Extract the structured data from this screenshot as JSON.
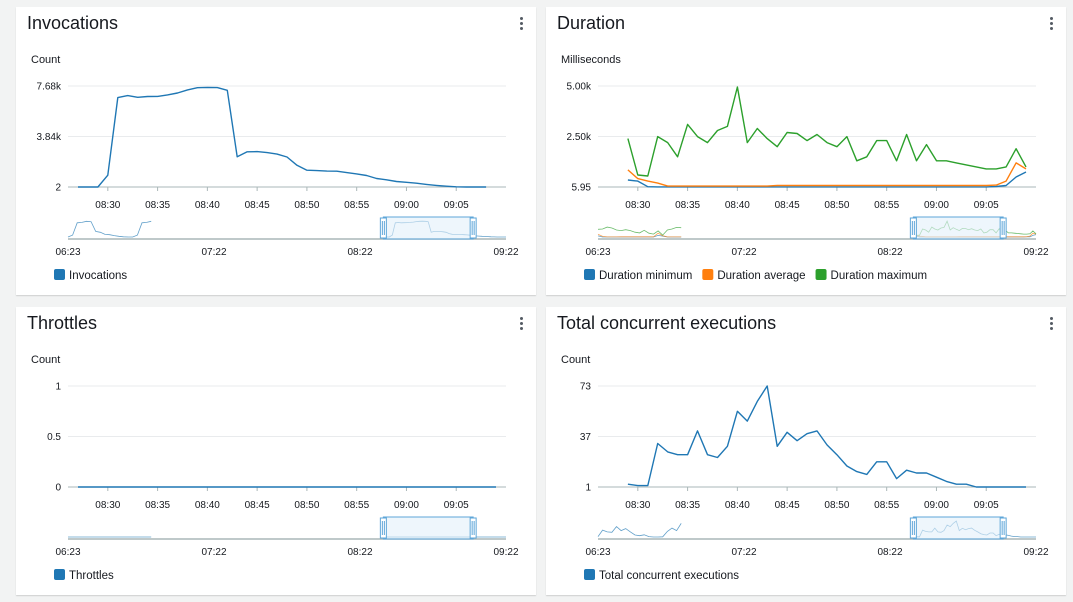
{
  "colors": {
    "blue": "#1f77b4",
    "orange": "#ff7f0e",
    "green": "#2ca02c",
    "grid": "#e9ebed",
    "axis": "#545b64",
    "nav_fill": "#e3f0fa",
    "nav_border": "#5ea6d8"
  },
  "time_axis": {
    "tick_labels": [
      "08:30",
      "08:35",
      "08:40",
      "08:45",
      "08:50",
      "08:55",
      "09:00",
      "09:05"
    ]
  },
  "navigator": {
    "tick_labels": [
      "06:23",
      "07:22",
      "08:22",
      "09:22"
    ]
  },
  "chart_data": [
    {
      "id": "invocations",
      "type": "line",
      "title": "Invocations",
      "ylabel": "Count",
      "ylim": [
        2,
        7680
      ],
      "ytick_labels": [
        "7.68k",
        "3.84k",
        "2"
      ],
      "ytick_values": [
        7680,
        3840,
        2
      ],
      "x": [
        27,
        28,
        29,
        30,
        31,
        32,
        33,
        34,
        35,
        36,
        37,
        38,
        39,
        40,
        41,
        42,
        43,
        44,
        45,
        46,
        47,
        48,
        49,
        50,
        51,
        52,
        53,
        54,
        55,
        56,
        57,
        58,
        59,
        60,
        61,
        62,
        63,
        64,
        65,
        66,
        67,
        68
      ],
      "series": [
        {
          "name": "Invocations",
          "color": "#1f77b4",
          "values": [
            2,
            2,
            2,
            900,
            6800,
            6950,
            6820,
            6880,
            6890,
            7000,
            7150,
            7380,
            7550,
            7570,
            7560,
            7350,
            2300,
            2680,
            2690,
            2620,
            2500,
            2280,
            1650,
            1280,
            1250,
            1210,
            1200,
            1100,
            1000,
            880,
            650,
            550,
            420,
            360,
            290,
            200,
            120,
            60,
            20,
            2,
            2,
            2
          ]
        }
      ],
      "legend": [
        "Invocations"
      ]
    },
    {
      "id": "duration",
      "type": "line",
      "title": "Duration",
      "ylabel": "Milliseconds",
      "ylim": [
        5.95,
        5000
      ],
      "ytick_labels": [
        "5.00k",
        "2.50k",
        "5.95"
      ],
      "ytick_values": [
        5000,
        2500,
        5.95
      ],
      "x": [
        29,
        30,
        31,
        32,
        33,
        34,
        35,
        36,
        37,
        38,
        39,
        40,
        41,
        42,
        43,
        44,
        45,
        46,
        47,
        48,
        49,
        50,
        51,
        52,
        53,
        54,
        55,
        56,
        57,
        58,
        59,
        60,
        61,
        62,
        63,
        64,
        65,
        66,
        67,
        68,
        69
      ],
      "series": [
        {
          "name": "Duration minimum",
          "color": "#1f77b4",
          "values": [
            350,
            300,
            20,
            10,
            10,
            10,
            10,
            10,
            10,
            10,
            10,
            10,
            10,
            10,
            10,
            10,
            10,
            10,
            10,
            10,
            10,
            10,
            10,
            10,
            10,
            10,
            10,
            10,
            10,
            10,
            10,
            10,
            10,
            10,
            10,
            10,
            10,
            30,
            80,
            500,
            750
          ]
        },
        {
          "name": "Duration average",
          "color": "#ff7f0e",
          "values": [
            850,
            420,
            300,
            200,
            50,
            50,
            50,
            50,
            50,
            50,
            50,
            50,
            50,
            50,
            50,
            80,
            80,
            80,
            80,
            80,
            80,
            80,
            80,
            80,
            80,
            80,
            80,
            80,
            80,
            80,
            80,
            80,
            80,
            80,
            80,
            80,
            80,
            100,
            300,
            1200,
            900
          ]
        },
        {
          "name": "Duration maximum",
          "color": "#2ca02c",
          "values": [
            2400,
            600,
            550,
            2500,
            2200,
            1500,
            3100,
            2500,
            2200,
            2800,
            3000,
            4950,
            2200,
            2900,
            2400,
            2000,
            2700,
            2650,
            2300,
            2600,
            2200,
            2000,
            2500,
            1300,
            1500,
            2300,
            2300,
            1300,
            2600,
            1300,
            2100,
            1300,
            1300,
            1200,
            1100,
            1000,
            900,
            900,
            1000,
            1900,
            1000
          ]
        }
      ],
      "legend": [
        "Duration minimum",
        "Duration average",
        "Duration maximum"
      ]
    },
    {
      "id": "throttles",
      "type": "line",
      "title": "Throttles",
      "ylabel": "Count",
      "ylim": [
        0,
        1
      ],
      "ytick_labels": [
        "1",
        "0.5",
        "0"
      ],
      "ytick_values": [
        1,
        0.5,
        0
      ],
      "x": [
        27,
        69
      ],
      "series": [
        {
          "name": "Throttles",
          "color": "#1f77b4",
          "values": [
            0,
            0
          ]
        }
      ],
      "legend": [
        "Throttles"
      ]
    },
    {
      "id": "concurrent",
      "type": "line",
      "title": "Total concurrent executions",
      "ylabel": "Count",
      "ylim": [
        1,
        73
      ],
      "ytick_labels": [
        "73",
        "37",
        "1"
      ],
      "ytick_values": [
        73,
        37,
        1
      ],
      "x": [
        29,
        30,
        31,
        32,
        33,
        34,
        35,
        36,
        37,
        38,
        39,
        40,
        41,
        42,
        43,
        44,
        45,
        46,
        47,
        48,
        49,
        50,
        51,
        52,
        53,
        54,
        55,
        56,
        57,
        58,
        59,
        60,
        61,
        62,
        63,
        64,
        65,
        66,
        67,
        68,
        69
      ],
      "series": [
        {
          "name": "Total concurrent executions",
          "color": "#1f77b4",
          "values": [
            3,
            2,
            2,
            32,
            26,
            24,
            24,
            41,
            24,
            22,
            30,
            55,
            48,
            62,
            73,
            30,
            40,
            34,
            39,
            41,
            31,
            24,
            16,
            12,
            10,
            19,
            19,
            7,
            13,
            11,
            11,
            8,
            5,
            3,
            3,
            1,
            1,
            1,
            1,
            1,
            1
          ]
        }
      ],
      "legend": [
        "Total concurrent executions"
      ]
    }
  ]
}
